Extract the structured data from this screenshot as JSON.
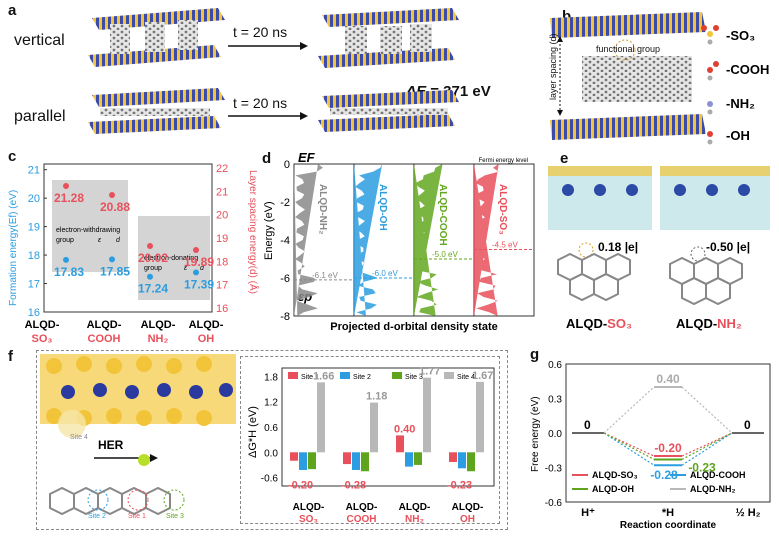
{
  "panel_a": {
    "label": "a",
    "row1": "vertical",
    "row2": "parallel",
    "arrow1": "t = 20 ns",
    "arrow2": "t = 20 ns",
    "delta_prefix": "ΔE",
    "delta_value": " = 371 eV"
  },
  "panel_b": {
    "label": "b",
    "functional_group": "functional group",
    "layer_spacing": "layer spacing (d)",
    "groups": [
      "-SO₃",
      "-COOH",
      "-NH₂",
      "-OH"
    ]
  },
  "panel_c": {
    "label": "c",
    "ylabel_left": "Formation energy(Ef) (eV)",
    "ylabel_right": "Layer spacing energy(d) (Å)",
    "left_ticks": [
      "21",
      "20",
      "19",
      "18",
      "17",
      "16"
    ],
    "right_ticks": [
      "22",
      "21",
      "20",
      "19",
      "18",
      "17",
      "16"
    ],
    "box1_label1": "electron-withdrawing",
    "box1_label2": "group",
    "box2_label1": "electron-donating",
    "box2_label2": "group",
    "sym_e": "ε",
    "sym_d": "d",
    "red_values": [
      "21.28",
      "20.88",
      "20.02",
      "19.89"
    ],
    "blue_values": [
      "17.83",
      "17.85",
      "17.24",
      "17.39"
    ],
    "cats": [
      {
        "pre": "ALQD-",
        "grp": "SO₃"
      },
      {
        "pre": "ALQD-",
        "grp": "COOH"
      },
      {
        "pre": "ALQD-",
        "grp": "NH₂"
      },
      {
        "pre": "ALQD-",
        "grp": "OH"
      }
    ]
  },
  "panel_d": {
    "label": "d",
    "ylabel": "Energy (eV)",
    "xlabel": "Projected d-orbital density state",
    "ticks": [
      "0",
      "-2",
      "-4",
      "-6",
      "-8"
    ],
    "ef": "EF",
    "ep": "εp",
    "fermi": "Fermi energy level",
    "lanes": [
      {
        "name": "ALQD-NH₂",
        "value": "-6.1 eV",
        "color": "#8a8a8a"
      },
      {
        "name": "ALQD-OH",
        "value": "-6.0 eV",
        "color": "#2b9de0"
      },
      {
        "name": "ALQD-COOH",
        "value": "-5.0 eV",
        "color": "#62a81e"
      },
      {
        "name": "ALQD-SO₃",
        "value": "-4.5 eV",
        "color": "#e8505b"
      }
    ]
  },
  "panel_e": {
    "label": "e",
    "charge1": "0.18 |e|",
    "charge2": "-0.50 |e|",
    "cap1_pre": "ALQD-",
    "cap1_grp": "SO₃",
    "cap2_pre": "ALQD-",
    "cap2_grp": "NH₂"
  },
  "panel_f": {
    "label": "f",
    "her": "HER",
    "site1": "Site 1",
    "site2": "Site 2",
    "site3": "Site 3",
    "site4": "Site 4",
    "ylabel": "ΔG*H (eV)",
    "ticks": [
      "1.8",
      "1.2",
      "0.6",
      "0.0",
      "-0.6"
    ],
    "cats": [
      {
        "pre": "ALQD-",
        "grp": "SO₃"
      },
      {
        "pre": "ALQD-",
        "grp": "COOH"
      },
      {
        "pre": "ALQD-",
        "grp": "NH₂"
      },
      {
        "pre": "ALQD-",
        "grp": "OH"
      }
    ],
    "value_labels": [
      "1.66",
      "1.18",
      "1.77",
      "1.67",
      "-0.20",
      "-0.28",
      "0.40",
      "-0.23"
    ]
  },
  "panel_g": {
    "label": "g",
    "ylabel": "Free energy (eV)",
    "xlabel": "Reaction coordinate",
    "ticks": [
      "0.6",
      "0.3",
      "0.0",
      "-0.3",
      "-0.6"
    ],
    "xticks": [
      "H⁺",
      "*H",
      "½ H₂"
    ],
    "zero_left": "0",
    "zero_right": "0",
    "labels": [
      "0.40",
      "-0.20",
      "-0.28",
      "-0.23"
    ],
    "legend": [
      "ALQD-SO₃",
      "ALQD-COOH",
      "ALQD-OH",
      "ALQD-NH₂"
    ]
  },
  "chart_data": [
    {
      "type": "scatter",
      "id": "panel-c",
      "categories": [
        "ALQD-SO3",
        "ALQD-COOH",
        "ALQD-NH2",
        "ALQD-OH"
      ],
      "series": [
        {
          "name": "Layer spacing",
          "values": [
            21.28,
            20.88,
            20.02,
            19.89
          ],
          "color": "#e8505b"
        },
        {
          "name": "Formation energy",
          "values": [
            17.83,
            17.85,
            17.24,
            17.39
          ],
          "color": "#2b9de0"
        }
      ],
      "ylim": [
        16,
        21.2
      ]
    },
    {
      "type": "bar",
      "id": "panel-f",
      "categories": [
        "ALQD-SO3",
        "ALQD-COOH",
        "ALQD-NH2",
        "ALQD-OH"
      ],
      "series": [
        {
          "name": "Site 1",
          "values": [
            -0.2,
            -0.28,
            0.4,
            -0.23
          ],
          "color": "#e8505b"
        },
        {
          "name": "Site 2",
          "values": [
            -0.42,
            -0.42,
            -0.34,
            -0.38
          ],
          "color": "#2b9de0"
        },
        {
          "name": "Site 3",
          "values": [
            -0.4,
            -0.45,
            -0.3,
            -0.45
          ],
          "color": "#5ea51d"
        },
        {
          "name": "Site 4",
          "values": [
            1.66,
            1.18,
            1.77,
            1.67
          ],
          "color": "#b8b8b8"
        }
      ],
      "ylim": [
        -0.8,
        2.0
      ]
    },
    {
      "type": "line",
      "id": "panel-g",
      "x": [
        "H+",
        "*H",
        "1/2 H2"
      ],
      "series": [
        {
          "name": "ALQD-SO3",
          "values": [
            0,
            -0.2,
            0
          ],
          "color": "#e8505b"
        },
        {
          "name": "ALQD-COOH",
          "values": [
            0,
            -0.28,
            0
          ],
          "color": "#2b9de0"
        },
        {
          "name": "ALQD-OH",
          "values": [
            0,
            -0.23,
            0
          ],
          "color": "#5ea51d"
        },
        {
          "name": "ALQD-NH2",
          "values": [
            0,
            0.4,
            0
          ],
          "color": "#b8b8b8"
        }
      ],
      "ylim": [
        -0.6,
        0.6
      ]
    }
  ]
}
